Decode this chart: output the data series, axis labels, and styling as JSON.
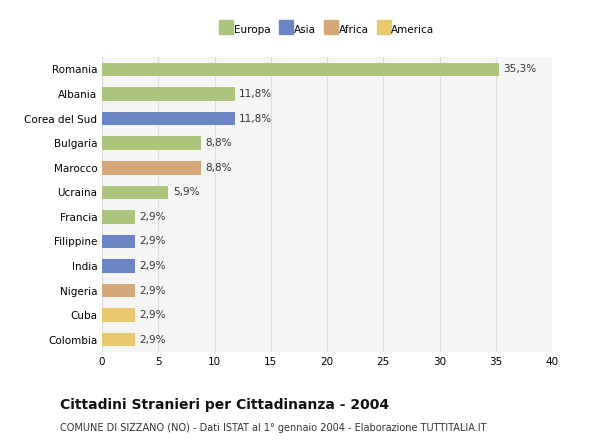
{
  "categories": [
    "Romania",
    "Albania",
    "Corea del Sud",
    "Bulgaria",
    "Marocco",
    "Ucraina",
    "Francia",
    "Filippine",
    "India",
    "Nigeria",
    "Cuba",
    "Colombia"
  ],
  "values": [
    35.3,
    11.8,
    11.8,
    8.8,
    8.8,
    5.9,
    2.9,
    2.9,
    2.9,
    2.9,
    2.9,
    2.9
  ],
  "labels": [
    "35,3%",
    "11,8%",
    "11,8%",
    "8,8%",
    "8,8%",
    "5,9%",
    "2,9%",
    "2,9%",
    "2,9%",
    "2,9%",
    "2,9%",
    "2,9%"
  ],
  "colors": [
    "#adc47d",
    "#adc47d",
    "#6b84c4",
    "#adc47d",
    "#d4a878",
    "#adc47d",
    "#adc47d",
    "#6b84c4",
    "#6b84c4",
    "#d4a878",
    "#e8c96e",
    "#e8c96e"
  ],
  "legend": [
    {
      "label": "Europa",
      "color": "#adc47d"
    },
    {
      "label": "Asia",
      "color": "#6b84c4"
    },
    {
      "label": "Africa",
      "color": "#d4a878"
    },
    {
      "label": "America",
      "color": "#e8c96e"
    }
  ],
  "xlim": [
    0,
    40
  ],
  "xticks": [
    0,
    5,
    10,
    15,
    20,
    25,
    30,
    35,
    40
  ],
  "title": "Cittadini Stranieri per Cittadinanza - 2004",
  "subtitle": "COMUNE DI SIZZANO (NO) - Dati ISTAT al 1° gennaio 2004 - Elaborazione TUTTITALIA.IT",
  "background_color": "#ffffff",
  "plot_bg_color": "#f5f5f5",
  "grid_color": "#dddddd",
  "bar_height": 0.55,
  "label_fontsize": 7.5,
  "tick_fontsize": 7.5,
  "title_fontsize": 10,
  "subtitle_fontsize": 7
}
